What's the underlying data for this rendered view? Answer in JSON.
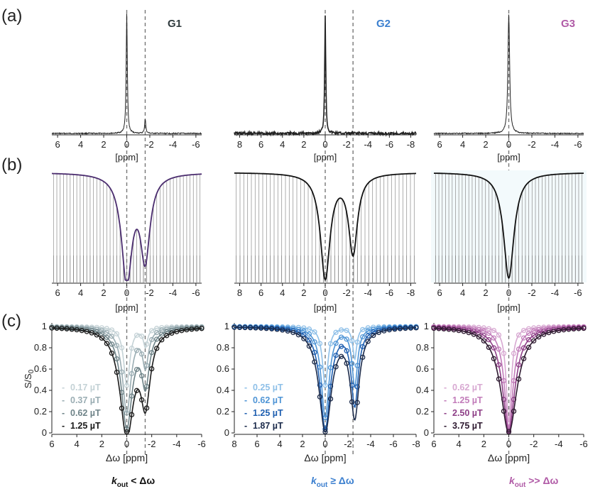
{
  "panel_labels": [
    "(a)",
    "(b)",
    "(c)"
  ],
  "groups": [
    {
      "id": "G1",
      "title": "G1",
      "color": "#2f3a3d"
    },
    {
      "id": "G2",
      "title": "G2",
      "color": "#3b7fcf"
    },
    {
      "id": "G3",
      "title": "G3",
      "color": "#b05aa6"
    }
  ],
  "regimes": [
    {
      "k": "k",
      "sub": "out",
      "rest": " < Δω",
      "color": "#111111"
    },
    {
      "k": "k",
      "sub": "out",
      "rest": " ≥ Δω",
      "color": "#3b7fcf"
    },
    {
      "k": "k",
      "sub": "out",
      "rest": " >> Δω",
      "color": "#b05aa6"
    }
  ],
  "axis_labels": {
    "ppm": "[ppm]",
    "dw": "Δω [ppm]",
    "ylabel_c": "S/S",
    "ylabel_c_sub": "0"
  },
  "colors": {
    "g1": [
      "#c4d2d6",
      "#9aadb3",
      "#6e8388",
      "#1a1a1a"
    ],
    "g2": [
      "#8fc0e8",
      "#4f95d6",
      "#1f5fb0",
      "#1b2a4a"
    ],
    "g3": [
      "#d8a9d2",
      "#c27cba",
      "#8e3f87",
      "#2e1a30"
    ],
    "zspec_b": [
      "#4a2c6e",
      "#111111",
      "#111111"
    ]
  },
  "chart_data": [
    {
      "type": "line",
      "panel": "a",
      "group": "G1",
      "xlim": [
        6.5,
        -6.5
      ],
      "xticks": [
        "6",
        "4",
        "2",
        "0",
        "-2",
        "-4",
        "-6"
      ],
      "xtick_values": [
        6,
        4,
        2,
        0,
        -2,
        -4,
        -6
      ],
      "peaks": [
        {
          "ppm": 0,
          "height": 1.0
        },
        {
          "ppm": -1.6,
          "height": 0.12
        }
      ],
      "dashed_lines_ppm": [
        0,
        -1.6
      ]
    },
    {
      "type": "line",
      "panel": "a",
      "group": "G2",
      "xlim": [
        8.5,
        -8.5
      ],
      "xticks": [
        "8",
        "6",
        "4",
        "2",
        "0",
        "-2",
        "-4",
        "-6",
        "-8"
      ],
      "xtick_values": [
        8,
        6,
        4,
        2,
        0,
        -2,
        -4,
        -6,
        -8
      ],
      "peaks": [
        {
          "ppm": 0,
          "height": 1.0
        }
      ],
      "dashed_lines_ppm": [
        0,
        -2.6
      ]
    },
    {
      "type": "line",
      "panel": "a",
      "group": "G3",
      "xlim": [
        6.5,
        -6.5
      ],
      "xticks": [
        "6",
        "4",
        "2",
        "0",
        "-2",
        "-4",
        "-6"
      ],
      "xtick_values": [
        6,
        4,
        2,
        0,
        -2,
        -4,
        -6
      ],
      "peaks": [
        {
          "ppm": 0,
          "height": 1.0
        }
      ],
      "dashed_lines_ppm": [
        0
      ]
    },
    {
      "type": "line",
      "panel": "b",
      "group": "G1",
      "xlim": [
        6.5,
        -6.5
      ],
      "dips": [
        {
          "ppm": 0,
          "depth": 0.97
        },
        {
          "ppm": -1.6,
          "depth": 0.75
        }
      ]
    },
    {
      "type": "line",
      "panel": "b",
      "group": "G2",
      "xlim": [
        8.5,
        -8.5
      ],
      "dips": [
        {
          "ppm": 0,
          "depth": 0.95
        },
        {
          "ppm": -2.6,
          "depth": 0.72
        }
      ]
    },
    {
      "type": "line",
      "panel": "b",
      "group": "G3",
      "xlim": [
        6.5,
        -6.5
      ],
      "dips": [
        {
          "ppm": 0,
          "depth": 0.96
        }
      ]
    },
    {
      "type": "scatter",
      "panel": "c",
      "group": "G1",
      "xlim": [
        6,
        -6
      ],
      "ylim": [
        0,
        1.05
      ],
      "xticks": [
        "6",
        "4",
        "2",
        "0",
        "-2",
        "-4",
        "-6"
      ],
      "yticks": [
        "0",
        "0.2",
        "0.4",
        "0.6",
        "0.8",
        "1"
      ],
      "series": [
        {
          "name": "0.17 µT",
          "dips": [
            {
              "ppm": 0,
              "depth": 0.55
            },
            {
              "ppm": -1.5,
              "depth": 0.18
            }
          ]
        },
        {
          "name": "0.37 µT",
          "dips": [
            {
              "ppm": 0,
              "depth": 0.8
            },
            {
              "ppm": -1.5,
              "depth": 0.35
            }
          ]
        },
        {
          "name": "0.62 µT",
          "dips": [
            {
              "ppm": 0,
              "depth": 0.93
            },
            {
              "ppm": -1.5,
              "depth": 0.5
            }
          ]
        },
        {
          "name": "1.25 µT",
          "dips": [
            {
              "ppm": 0,
              "depth": 1.0
            },
            {
              "ppm": -1.5,
              "depth": 0.65
            }
          ]
        }
      ]
    },
    {
      "type": "scatter",
      "panel": "c",
      "group": "G2",
      "xlim": [
        8,
        -8
      ],
      "ylim": [
        0,
        1.05
      ],
      "xticks": [
        "8",
        "6",
        "4",
        "2",
        "0",
        "-2",
        "-4",
        "-6",
        "-8"
      ],
      "yticks": [
        "0",
        "0.2",
        "0.4",
        "0.6",
        "0.8",
        "1"
      ],
      "series": [
        {
          "name": "0.25 µT",
          "dips": [
            {
              "ppm": 0,
              "depth": 0.55
            },
            {
              "ppm": -2.6,
              "depth": 0.3
            }
          ]
        },
        {
          "name": "0.62 µT",
          "dips": [
            {
              "ppm": 0,
              "depth": 0.85
            },
            {
              "ppm": -2.6,
              "depth": 0.55
            }
          ]
        },
        {
          "name": "1.25 µT",
          "dips": [
            {
              "ppm": 0,
              "depth": 0.95
            },
            {
              "ppm": -2.6,
              "depth": 0.72
            }
          ]
        },
        {
          "name": "1.87 µT",
          "dips": [
            {
              "ppm": 0,
              "depth": 0.97
            },
            {
              "ppm": -2.6,
              "depth": 0.82
            }
          ]
        }
      ]
    },
    {
      "type": "scatter",
      "panel": "c",
      "group": "G3",
      "xlim": [
        6,
        -6
      ],
      "ylim": [
        0,
        1.05
      ],
      "xticks": [
        "6",
        "4",
        "2",
        "0",
        "-2",
        "-4",
        "-6"
      ],
      "yticks": [
        "0",
        "0.2",
        "0.4",
        "0.6",
        "0.8",
        "1"
      ],
      "series": [
        {
          "name": "0.62 µT",
          "dips": [
            {
              "ppm": 0,
              "depth": 0.9
            }
          ]
        },
        {
          "name": "1.25 µT",
          "dips": [
            {
              "ppm": 0,
              "depth": 0.95
            }
          ]
        },
        {
          "name": "2.50 µT",
          "dips": [
            {
              "ppm": 0,
              "depth": 0.98
            }
          ]
        },
        {
          "name": "3.75 µT",
          "dips": [
            {
              "ppm": 0,
              "depth": 1.0
            }
          ]
        }
      ]
    }
  ]
}
